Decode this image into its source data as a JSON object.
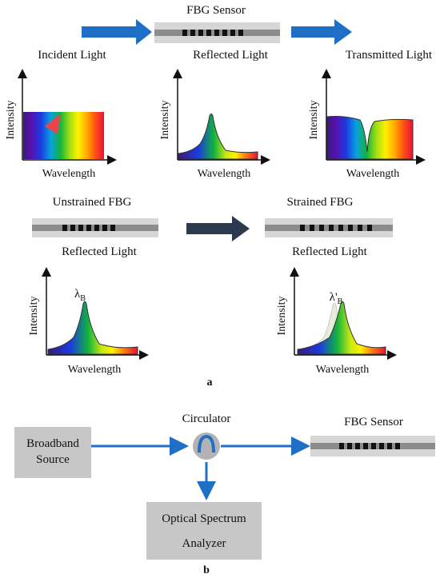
{
  "panel_a": {
    "top": {
      "sensor_title": "FBG Sensor",
      "incident_label": "Incident Light",
      "reflected_label": "Reflected Light",
      "transmitted_label": "Transmitted Light",
      "x_axis": "Wavelength",
      "y_axis": "Intensity"
    },
    "bottom": {
      "unstrained_title": "Unstrained FBG",
      "strained_title": "Strained FBG",
      "left_reflected_label": "Reflected Light",
      "right_reflected_label": "Reflected Light",
      "lambda_b": "λ",
      "lambda_b_sub": "B",
      "lambda_b_prime": "λ'",
      "lambda_b_prime_sub": "B",
      "x_axis": "Wavelength",
      "y_axis": "Intensity"
    },
    "panel_label": "a"
  },
  "panel_b": {
    "source_line1": "Broadband",
    "source_line2": "Source",
    "circulator_label": "Circulator",
    "sensor_label": "FBG Sensor",
    "osa_line1": "Optical Spectrum",
    "osa_line2": "Analyzer",
    "panel_label": "b"
  },
  "colors": {
    "blue_arrow": "#1f6fc6",
    "dark_arrow": "#2b3a4f",
    "fiber_outer": "#d6d6d6",
    "fiber_core": "#8c8c8c",
    "grating": "#111111",
    "box_gray": "#c7c7c7"
  }
}
